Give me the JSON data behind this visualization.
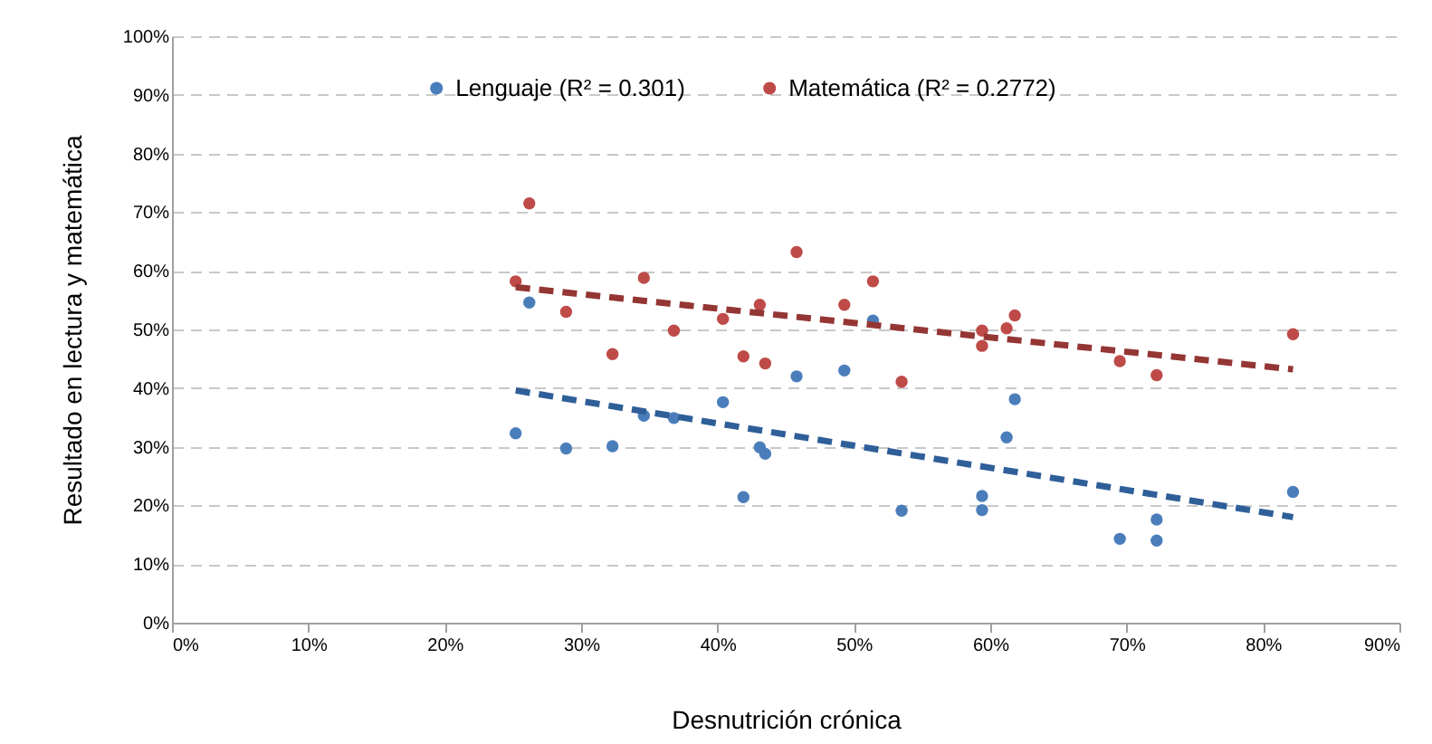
{
  "chart_data": {
    "type": "scatter",
    "xlabel": "Desnutrición crónica",
    "ylabel": "Resultado en lectura y matemática",
    "xlim": [
      0,
      90
    ],
    "ylim": [
      0,
      100
    ],
    "xticks": [
      {
        "value": 0,
        "label": "0%"
      },
      {
        "value": 10,
        "label": "10%"
      },
      {
        "value": 20,
        "label": "20%"
      },
      {
        "value": 30,
        "label": "30%"
      },
      {
        "value": 40,
        "label": "40%"
      },
      {
        "value": 50,
        "label": "50%"
      },
      {
        "value": 60,
        "label": "60%"
      },
      {
        "value": 70,
        "label": "70%"
      },
      {
        "value": 80,
        "label": "80%"
      },
      {
        "value": 90,
        "label": "90%"
      }
    ],
    "yticks": [
      {
        "value": 0,
        "label": "0%"
      },
      {
        "value": 10,
        "label": "10%"
      },
      {
        "value": 20,
        "label": "20%"
      },
      {
        "value": 30,
        "label": "30%"
      },
      {
        "value": 40,
        "label": "40%"
      },
      {
        "value": 50,
        "label": "50%"
      },
      {
        "value": 60,
        "label": "60%"
      },
      {
        "value": 70,
        "label": "70%"
      },
      {
        "value": 80,
        "label": "80%"
      },
      {
        "value": 90,
        "label": "90%"
      },
      {
        "value": 100,
        "label": "100%"
      }
    ],
    "grid": "y",
    "legend": "top",
    "series": [
      {
        "name": "Lenguaje (R² = 0.301)",
        "type": "scatter",
        "marker": "circle",
        "color": "#4a7ebb",
        "x": [
          26.2,
          25.2,
          28.9,
          32.3,
          34.6,
          36.8,
          40.4,
          41.9,
          43.1,
          43.5,
          45.8,
          49.3,
          51.4,
          53.5,
          59.4,
          59.4,
          61.2,
          61.8,
          69.5,
          72.2,
          72.2,
          82.2
        ],
        "values": [
          54.6,
          32.3,
          29.7,
          30.1,
          35.3,
          34.9,
          37.6,
          21.4,
          29.9,
          28.8,
          42.0,
          43.0,
          51.5,
          19.1,
          21.6,
          19.2,
          31.6,
          38.1,
          14.3,
          17.6,
          14.0,
          22.3
        ]
      },
      {
        "name": "Matemática (R² = 0.2772)",
        "type": "scatter",
        "marker": "circle",
        "color": "#be4b48",
        "x": [
          26.2,
          25.2,
          28.9,
          32.3,
          34.6,
          36.8,
          40.4,
          41.9,
          43.1,
          43.5,
          45.8,
          49.3,
          51.4,
          53.5,
          59.4,
          59.4,
          61.2,
          61.8,
          69.5,
          72.2,
          82.2
        ],
        "values": [
          71.5,
          58.2,
          53.0,
          45.8,
          58.8,
          49.8,
          51.8,
          45.4,
          54.2,
          44.2,
          63.2,
          54.2,
          58.2,
          41.1,
          49.8,
          47.2,
          50.2,
          52.4,
          44.6,
          42.2,
          49.2
        ]
      },
      {
        "type": "line",
        "color": "#2f5f98",
        "line_style": "dashed",
        "x": [
          25.2,
          82.2
        ],
        "values": [
          39.6,
          18.0
        ]
      },
      {
        "type": "line",
        "color": "#943634",
        "line_style": "dashed",
        "x": [
          25.2,
          82.2
        ],
        "values": [
          57.2,
          43.2
        ]
      }
    ]
  }
}
